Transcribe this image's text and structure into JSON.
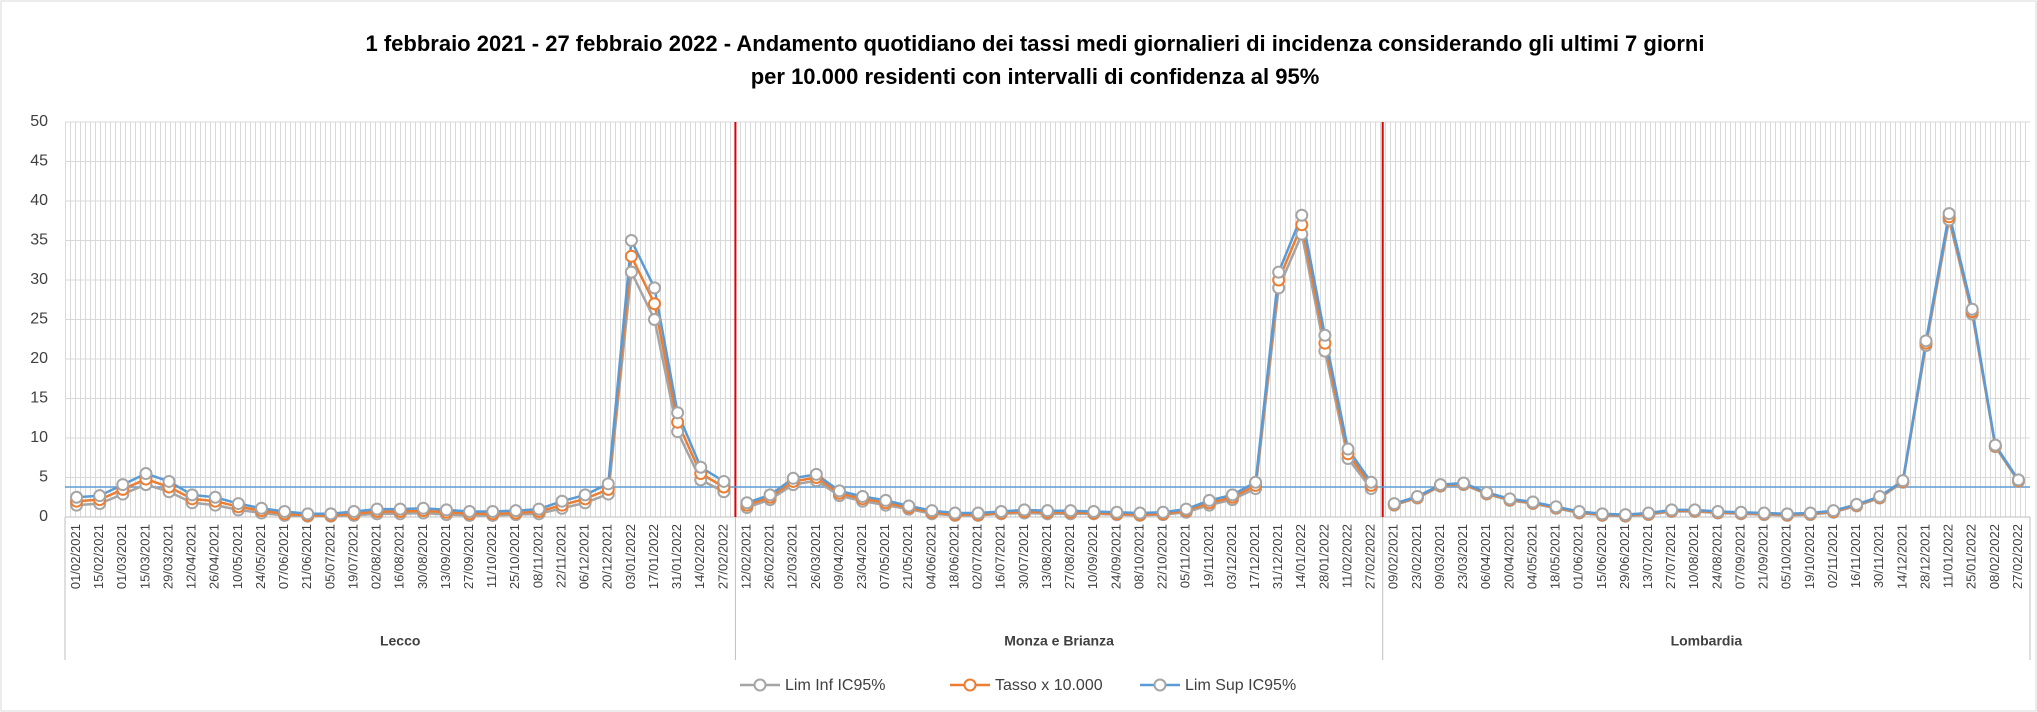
{
  "chart_data": {
    "type": "line",
    "title_lines": [
      "1 febbraio 2021 - 27 febbraio 2022 - Andamento quotidiano  dei tassi medi giornalieri di incidenza considerando  gli ultimi 7 giorni",
      "per 10.000 residenti con intervalli di confidenza  al 95%"
    ],
    "categories": [
      "01/02/2021",
      "15/02/2021",
      "01/03/2021",
      "15/03/2021",
      "29/03/2021",
      "12/04/2021",
      "26/04/2021",
      "10/05/2021",
      "24/05/2021",
      "07/06/2021",
      "21/06/2021",
      "05/07/2021",
      "19/07/2021",
      "02/08/2021",
      "16/08/2021",
      "30/08/2021",
      "13/09/2021",
      "27/09/2021",
      "11/10/2021",
      "25/10/2021",
      "08/11/2021",
      "22/11/2021",
      "06/12/2021",
      "20/12/2021",
      "03/01/2022",
      "17/01/2022",
      "31/01/2022",
      "14/02/2022",
      "27/02/2022",
      "12/02/2021",
      "26/02/2021",
      "12/03/2021",
      "26/03/2021",
      "09/04/2021",
      "23/04/2021",
      "07/05/2021",
      "21/05/2021",
      "04/06/2021",
      "18/06/2021",
      "02/07/2021",
      "16/07/2021",
      "30/07/2021",
      "13/08/2021",
      "27/08/2021",
      "10/09/2021",
      "24/09/2021",
      "08/10/2021",
      "22/10/2021",
      "05/11/2021",
      "19/11/2021",
      "03/12/2021",
      "17/12/2021",
      "31/12/2021",
      "14/01/2022",
      "28/01/2022",
      "11/02/2022",
      "27/02/2022",
      "09/02/2021",
      "23/02/2021",
      "09/03/2021",
      "23/03/2021",
      "06/04/2021",
      "20/04/2021",
      "04/05/2021",
      "18/05/2021",
      "01/06/2021",
      "15/06/2021",
      "29/06/2021",
      "13/07/2021",
      "27/07/2021",
      "10/08/2021",
      "24/08/2021",
      "07/09/2021",
      "21/09/2021",
      "05/10/2021",
      "19/10/2021",
      "02/11/2021",
      "16/11/2021",
      "30/11/2021",
      "14/12/2021",
      "28/12/2021",
      "11/01/2022",
      "25/01/2022",
      "08/02/2022",
      "27/02/2022"
    ],
    "groups": [
      "Lecco",
      "Monza e Brianza",
      "Lombardia"
    ],
    "series": [
      {
        "name": "Lim Inf IC95%",
        "color": "#a5a5a5",
        "marker": "#a5a5a5",
        "values": [
          1.5,
          1.7,
          2.9,
          4.1,
          3.2,
          1.8,
          1.5,
          0.9,
          0.5,
          0.2,
          0.1,
          0.1,
          0.2,
          0.4,
          0.4,
          0.5,
          0.3,
          0.2,
          0.2,
          0.3,
          0.4,
          1.1,
          1.8,
          2.9,
          31,
          25,
          10.8,
          4.7,
          3.2,
          1.2,
          2.2,
          4.1,
          4.6,
          2.7,
          2.0,
          1.5,
          1.0,
          0.4,
          0.2,
          0.2,
          0.4,
          0.5,
          0.4,
          0.4,
          0.4,
          0.3,
          0.2,
          0.3,
          0.6,
          1.5,
          2.2,
          3.6,
          29,
          35.8,
          21,
          7.4,
          3.6,
          1.5,
          2.4,
          3.9,
          4.1,
          2.9,
          2.1,
          1.7,
          1.1,
          0.5,
          0.2,
          0.1,
          0.3,
          0.7,
          0.7,
          0.5,
          0.4,
          0.3,
          0.2,
          0.3,
          0.6,
          1.4,
          2.4,
          4.4,
          21.7,
          37.6,
          25.7,
          8.9,
          4.5
        ]
      },
      {
        "name": "Tasso x 10.000",
        "color": "#ed7d31",
        "marker": "#ed7d31",
        "values": [
          2.0,
          2.2,
          3.5,
          4.8,
          3.8,
          2.3,
          2.0,
          1.3,
          0.8,
          0.4,
          0.2,
          0.2,
          0.4,
          0.7,
          0.7,
          0.8,
          0.6,
          0.4,
          0.4,
          0.5,
          0.7,
          1.5,
          2.3,
          3.5,
          33,
          27,
          12,
          5.5,
          3.8,
          1.5,
          2.5,
          4.5,
          5.0,
          3.0,
          2.3,
          1.8,
          1.2,
          0.6,
          0.3,
          0.3,
          0.5,
          0.7,
          0.6,
          0.6,
          0.5,
          0.4,
          0.3,
          0.4,
          0.8,
          1.8,
          2.5,
          4.0,
          30,
          37,
          22,
          8,
          4.0,
          1.6,
          2.5,
          4.0,
          4.2,
          3.0,
          2.2,
          1.8,
          1.2,
          0.6,
          0.3,
          0.2,
          0.4,
          0.8,
          0.8,
          0.6,
          0.5,
          0.4,
          0.3,
          0.4,
          0.7,
          1.5,
          2.5,
          4.5,
          22,
          38,
          26,
          9,
          4.6
        ]
      },
      {
        "name": "Lim Sup IC95%",
        "color": "#5b9bd5",
        "marker": "#a5a5a5",
        "values": [
          2.5,
          2.7,
          4.1,
          5.5,
          4.5,
          2.8,
          2.5,
          1.7,
          1.1,
          0.7,
          0.4,
          0.4,
          0.7,
          1.0,
          1.0,
          1.1,
          0.9,
          0.7,
          0.7,
          0.8,
          1.0,
          2.0,
          2.8,
          4.2,
          35,
          29,
          13.2,
          6.3,
          4.5,
          1.8,
          2.8,
          4.9,
          5.4,
          3.3,
          2.6,
          2.1,
          1.4,
          0.8,
          0.5,
          0.5,
          0.7,
          0.9,
          0.8,
          0.8,
          0.7,
          0.6,
          0.5,
          0.6,
          1.0,
          2.1,
          2.8,
          4.4,
          31,
          38.2,
          23,
          8.6,
          4.4,
          1.7,
          2.6,
          4.1,
          4.3,
          3.1,
          2.3,
          1.9,
          1.3,
          0.7,
          0.4,
          0.3,
          0.5,
          0.9,
          0.9,
          0.7,
          0.6,
          0.5,
          0.4,
          0.5,
          0.8,
          1.6,
          2.6,
          4.6,
          22.3,
          38.4,
          26.3,
          9.1,
          4.7
        ]
      }
    ],
    "reference_line": 3.8,
    "ylim": [
      0,
      50
    ],
    "yticks": [
      0,
      5,
      10,
      15,
      20,
      25,
      30,
      35,
      40,
      45,
      50
    ],
    "grid": true,
    "legend": "bottom"
  }
}
